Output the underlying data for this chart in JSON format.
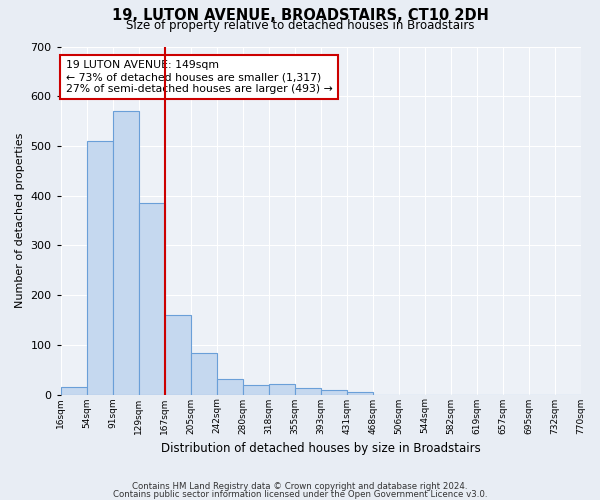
{
  "title": "19, LUTON AVENUE, BROADSTAIRS, CT10 2DH",
  "subtitle": "Size of property relative to detached houses in Broadstairs",
  "xlabel": "Distribution of detached houses by size in Broadstairs",
  "ylabel": "Number of detached properties",
  "bar_values": [
    15,
    510,
    570,
    385,
    160,
    83,
    32,
    20,
    22,
    13,
    10,
    5,
    0,
    0,
    0,
    0,
    0,
    0,
    0,
    0
  ],
  "tick_labels": [
    "16sqm",
    "54sqm",
    "91sqm",
    "129sqm",
    "167sqm",
    "205sqm",
    "242sqm",
    "280sqm",
    "318sqm",
    "355sqm",
    "393sqm",
    "431sqm",
    "468sqm",
    "506sqm",
    "544sqm",
    "582sqm",
    "619sqm",
    "657sqm",
    "695sqm",
    "732sqm",
    "770sqm"
  ],
  "bar_color": "#c5d8ef",
  "bar_edge_color": "#6a9fd8",
  "vline_x_idx": 3.5,
  "vline_color": "#cc0000",
  "annotation_text": "19 LUTON AVENUE: 149sqm\n← 73% of detached houses are smaller (1,317)\n27% of semi-detached houses are larger (493) →",
  "annotation_box_color": "#ffffff",
  "annotation_box_edge": "#cc0000",
  "ylim": [
    0,
    700
  ],
  "yticks": [
    0,
    100,
    200,
    300,
    400,
    500,
    600,
    700
  ],
  "footer_line1": "Contains HM Land Registry data © Crown copyright and database right 2024.",
  "footer_line2": "Contains public sector information licensed under the Open Government Licence v3.0.",
  "bg_color": "#e8edf4",
  "plot_bg_color": "#edf1f7",
  "n_ticks": 21
}
